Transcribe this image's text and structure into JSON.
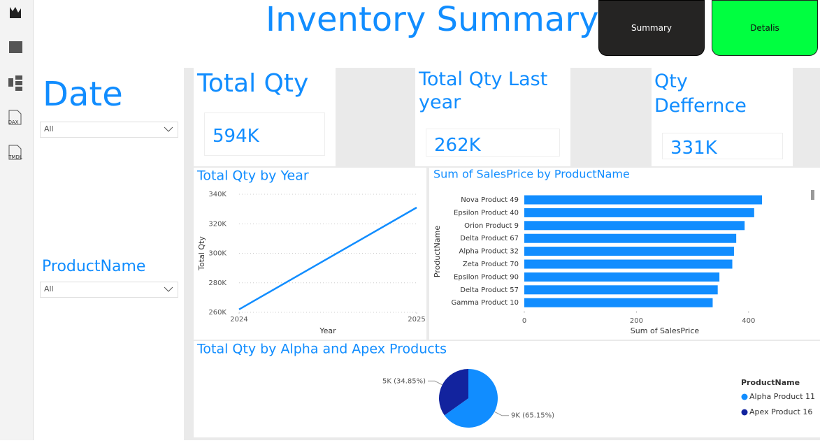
{
  "sidebar": {
    "icons": [
      "DAX",
      "TMDL"
    ]
  },
  "header": {
    "title": "Inventory Summary",
    "buttons": [
      "Summary",
      "Detalis"
    ]
  },
  "filters": [
    {
      "label": "Date",
      "value": "All"
    },
    {
      "label": "ProductName",
      "value": "All"
    }
  ],
  "cards": [
    {
      "title": "Total Qty",
      "value": "594K"
    },
    {
      "title": "Total Qty Last year",
      "value": "262K"
    },
    {
      "title": "Qty Deffernce",
      "value": "331K"
    }
  ],
  "chart_data": [
    {
      "type": "line",
      "title": "Total Qty by Year",
      "x_label": "Year",
      "y_label": "Total Qty",
      "x": [
        2024,
        2025
      ],
      "values": [
        262000,
        331000
      ],
      "color": "#118dff",
      "xlim": [
        2024,
        2025
      ],
      "xticks": [
        2024,
        2025
      ],
      "ylim": [
        260000,
        340000
      ],
      "yticks": [
        {
          "value": 260000,
          "label": "260K"
        },
        {
          "value": 280000,
          "label": "280K"
        },
        {
          "value": 300000,
          "label": "300K"
        },
        {
          "value": 320000,
          "label": "320K"
        },
        {
          "value": 340000,
          "label": "340K"
        }
      ],
      "grid": true
    },
    {
      "type": "hbar",
      "title": "Sum of SalesPrice by ProductName",
      "x_label": "Sum of SalesPrice",
      "y_label": "ProductName",
      "categories": [
        "Nova Product 49",
        "Epsilon Product 40",
        "Orion Product 9",
        "Delta Product 67",
        "Alpha Product 32",
        "Zeta Product 70",
        "Epsilon Product 90",
        "Delta Product 57",
        "Gamma Product 10"
      ],
      "values": [
        424,
        410,
        393,
        378,
        374,
        371,
        348,
        345,
        336
      ],
      "color": "#118dff",
      "xlim": [
        0,
        500
      ],
      "xticks": [
        0,
        200,
        400
      ]
    },
    {
      "type": "pie",
      "title": "Total Qty by Alpha and Apex Products",
      "legend_title": "ProductName",
      "legend": "right",
      "categories": [
        "Alpha Product 11",
        "Apex Product 16"
      ],
      "values": [
        65.15,
        34.85
      ],
      "value_labels": [
        "9K (65.15%)",
        "5K (34.85%)"
      ],
      "colors": [
        "#118dff",
        "#12239e"
      ]
    }
  ]
}
